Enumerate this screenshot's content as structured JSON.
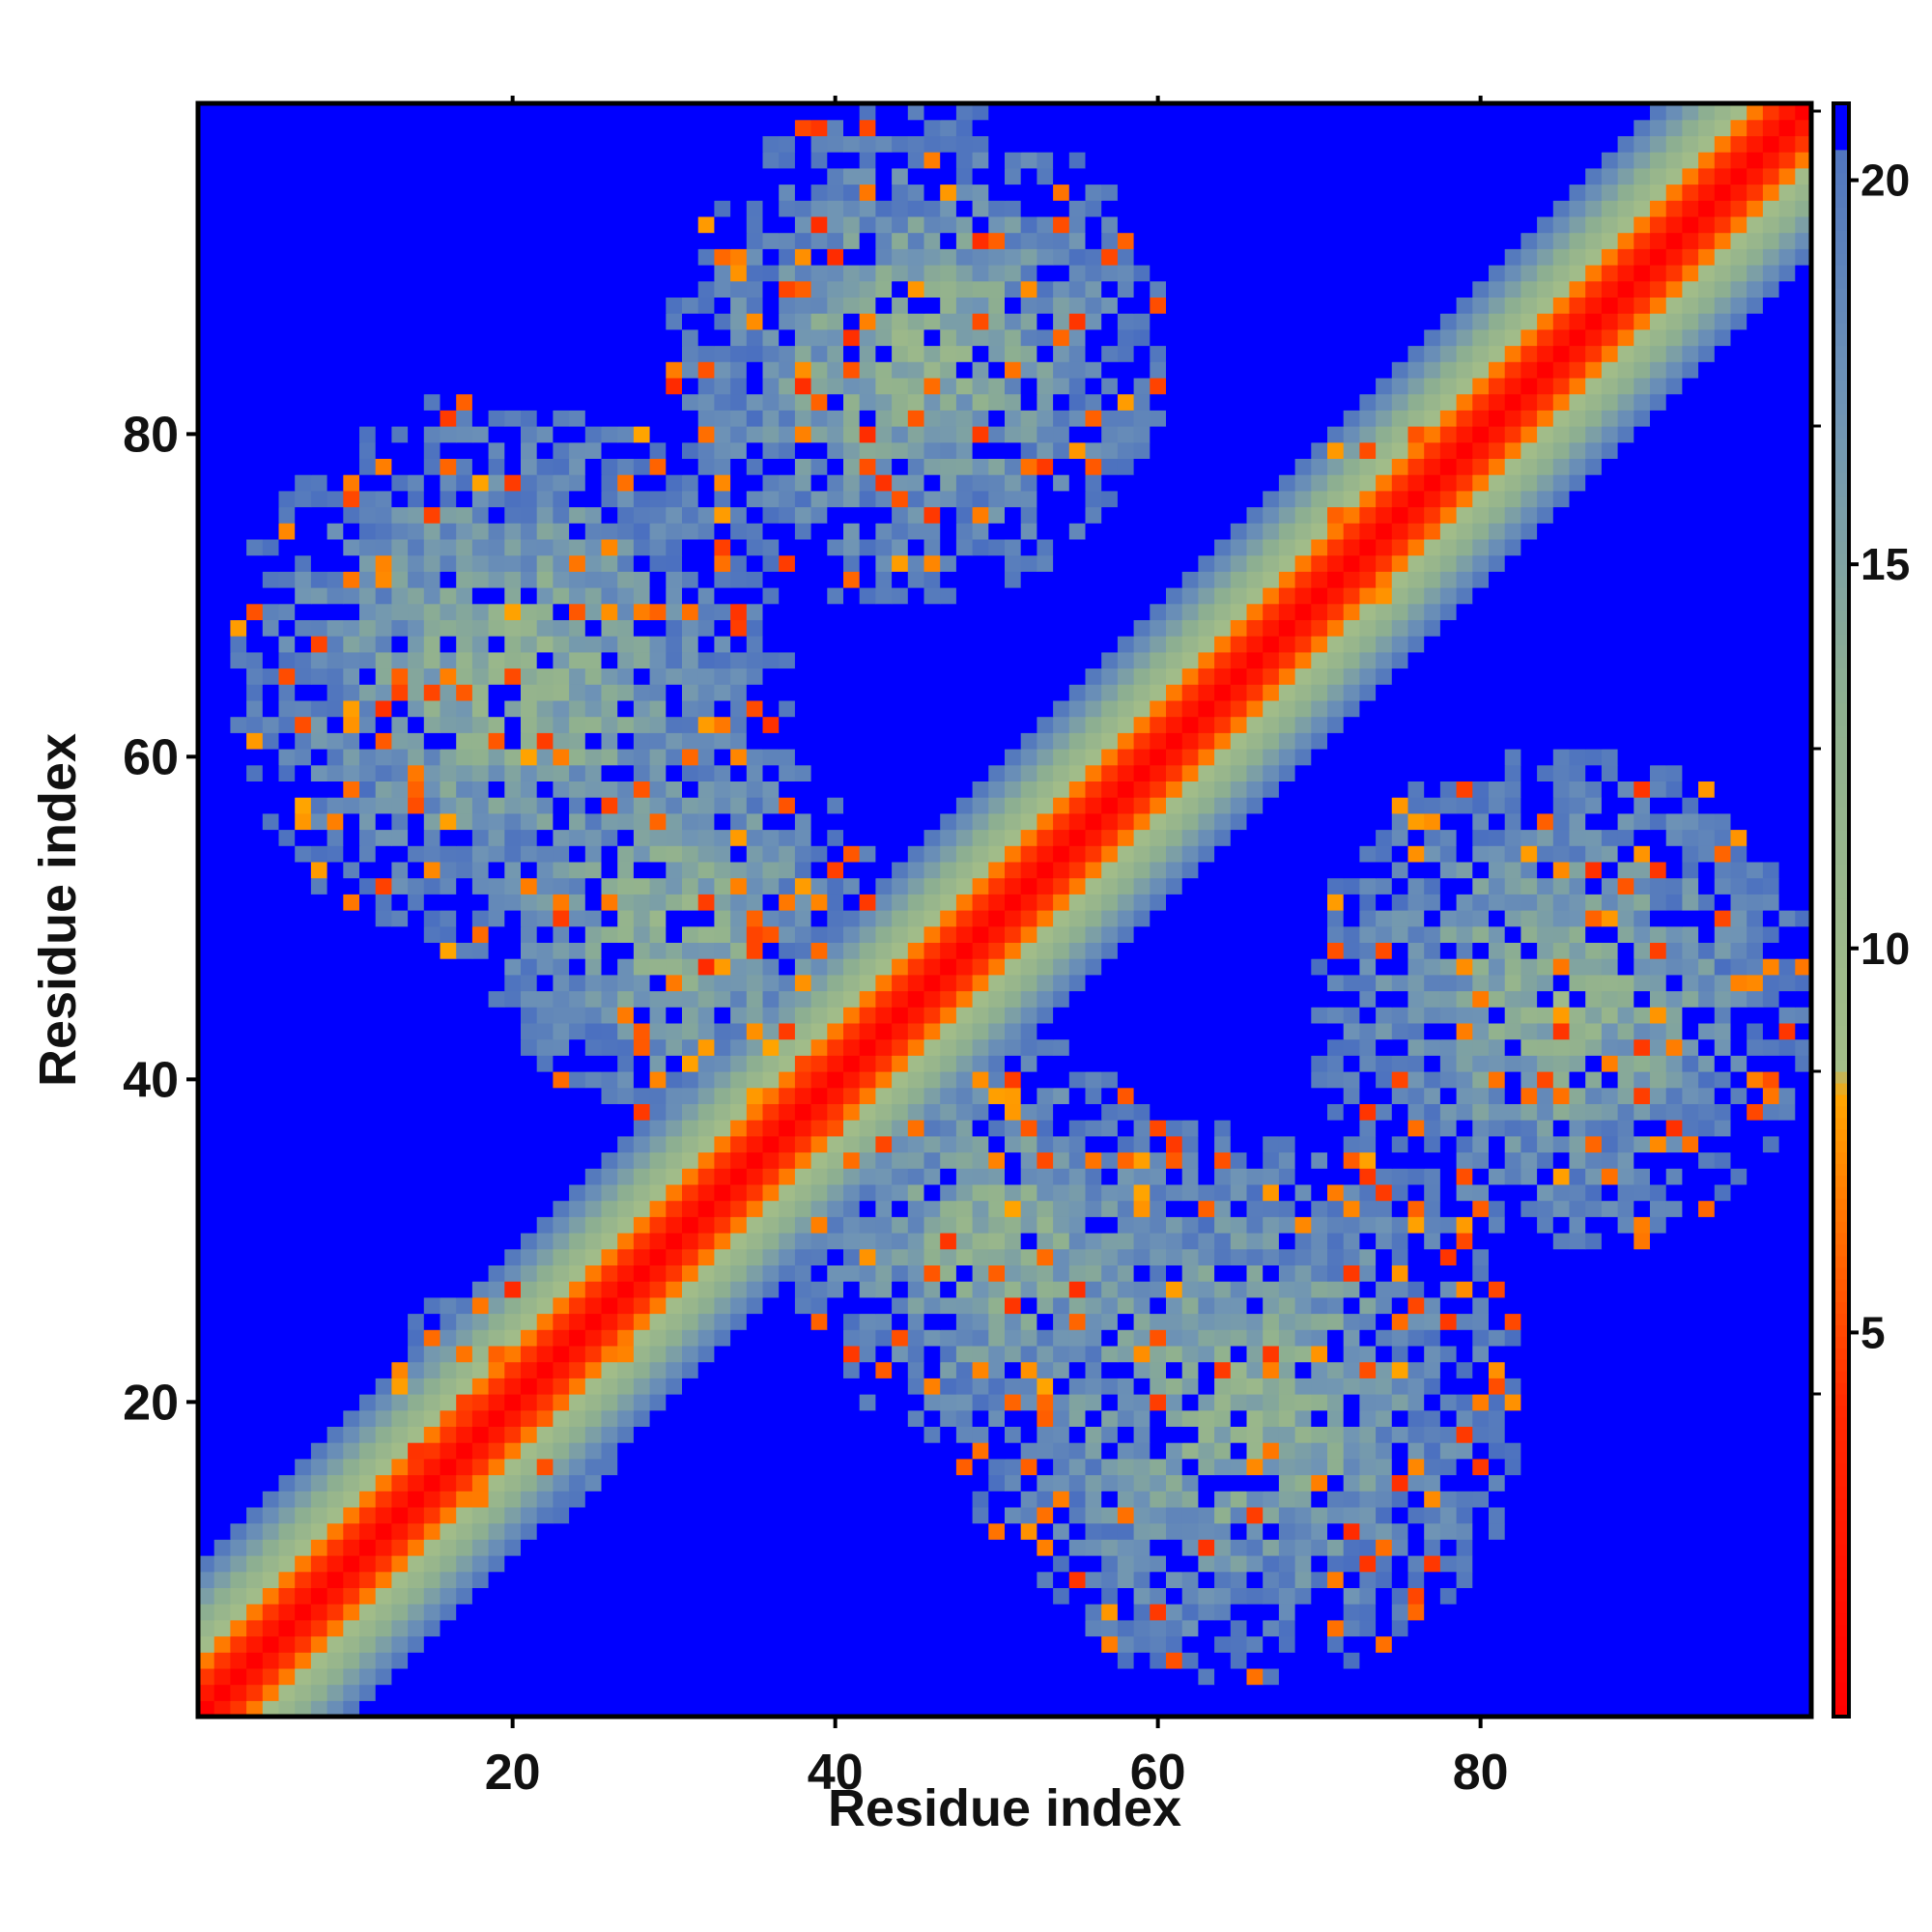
{
  "chart_data": {
    "type": "heatmap",
    "title": "",
    "xlabel": "Residue index",
    "ylabel": "Residue index",
    "n_residues": 100,
    "xlim": [
      1,
      100
    ],
    "ylim": [
      1,
      100
    ],
    "x_ticks": [
      20,
      40,
      60,
      80
    ],
    "y_ticks": [
      20,
      40,
      60,
      80
    ],
    "x_tick_labels": [
      "20",
      "40",
      "60",
      "80"
    ],
    "y_tick_labels": [
      "20",
      "40",
      "60",
      "80"
    ],
    "colorbar": {
      "range": [
        0,
        21
      ],
      "ticks": [
        5,
        10,
        15,
        20
      ],
      "tick_labels": [
        "5",
        "10",
        "15",
        "20"
      ],
      "stops": [
        {
          "value": 0,
          "color": "#ff0000"
        },
        {
          "value": 4,
          "color": "#ff2a00"
        },
        {
          "value": 8,
          "color": "#ffa500"
        },
        {
          "value": 8.4,
          "color": "#a3bd88"
        },
        {
          "value": 13,
          "color": "#8fb08f"
        },
        {
          "value": 17,
          "color": "#6f94b5"
        },
        {
          "value": 21,
          "color": "#4a6fc0"
        }
      ],
      "background_color": "#0000ff",
      "cutoff": 21
    },
    "structure": {
      "diagonal": "distance = |i - j| near contact band",
      "antiparallel_contacts": [
        {
          "residues_a": [
            1,
            40
          ],
          "residues_b": [
            45,
            95
          ],
          "note": "first hairpin region"
        },
        {
          "residues_a": [
            5,
            50
          ],
          "residues_b": [
            40,
            80
          ]
        },
        {
          "residues_a": [
            40,
            90
          ],
          "residues_b": [
            5,
            50
          ]
        },
        {
          "residues_a": [
            45,
            95
          ],
          "residues_b": [
            1,
            40
          ]
        }
      ]
    },
    "grid": false,
    "legend": "colorbar-right"
  }
}
